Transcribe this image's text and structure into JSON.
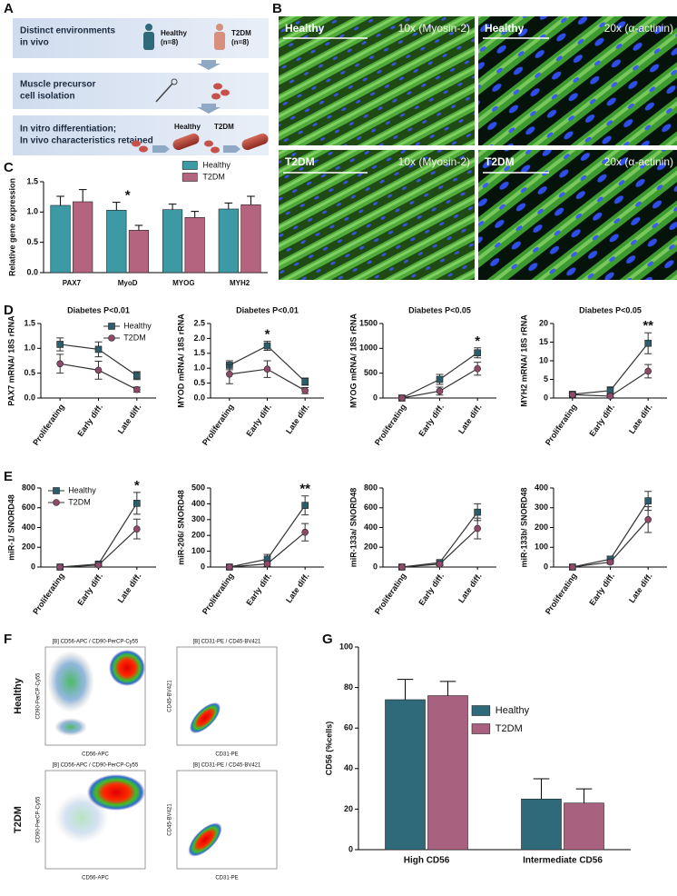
{
  "panel_letters": [
    "A",
    "B",
    "C",
    "D",
    "E",
    "F",
    "G"
  ],
  "diagram": {
    "steps": [
      [
        "Distinct environments",
        "in vivo"
      ],
      [
        "Muscle precursor",
        "cell isolation"
      ],
      [
        "In vitro differentiation;",
        "In vivo characteristics retained"
      ]
    ],
    "group_a": [
      "Healthy",
      "(n=8)"
    ],
    "group_b": [
      "T2DM",
      "(n=8)"
    ],
    "fiber_a": "Healthy",
    "fiber_b": "T2DM"
  },
  "micrographs": [
    {
      "group": "Healthy",
      "stain": "10x (Myosin-2)"
    },
    {
      "group": "Healthy",
      "stain": "20x (α-actinin)"
    },
    {
      "group": "T2DM",
      "stain": "10x (Myosin-2)"
    },
    {
      "group": "T2DM",
      "stain": "20x (α-actinin)"
    }
  ],
  "flow": {
    "rows": [
      "Healthy",
      "T2DM"
    ],
    "plots": [
      {
        "title": "[B] CD56-APC / CD90-PerCP-Cy55",
        "x_label": "CD56-APC",
        "y_label": "CD90-PerCP-Cy55"
      },
      {
        "title": "[B] CD31-PE / CD45-BV421",
        "x_label": "CD31-PE",
        "y_label": "CD45-BV421"
      }
    ]
  },
  "chart_data": [
    {
      "type": "bar",
      "y_label": "Relative gene expression",
      "categories": [
        "PAX7",
        "MyoD",
        "MYOG",
        "MYH2"
      ],
      "series": [
        {
          "name": "Healthy",
          "color": "#3c9aa5",
          "values": [
            1.11,
            1.03,
            1.04,
            1.05
          ],
          "errors": [
            0.15,
            0.13,
            0.09,
            0.1
          ]
        },
        {
          "name": "T2DM",
          "color": "#b4647e",
          "values": [
            1.17,
            0.7,
            0.91,
            1.12
          ],
          "errors": [
            0.2,
            0.08,
            0.1,
            0.14
          ]
        }
      ],
      "ylim": [
        0,
        1.5
      ],
      "yticks": [
        {
          "value": 0,
          "label": "0.0"
        },
        {
          "value": 0.5,
          "label": "0.5"
        },
        {
          "value": 1,
          "label": "1.0"
        },
        {
          "value": 1.5,
          "label": "1.5"
        }
      ],
      "legend": "top",
      "annotations": [
        {
          "text": "*",
          "index": 1
        }
      ]
    },
    {
      "type": "line",
      "title": "Diabetes P<0.01",
      "y_label": "PAX7 mRNA/ 18S rRNA",
      "categories": [
        "Proliferating",
        "Early diff.",
        "Late diff."
      ],
      "series": [
        {
          "name": "Healthy",
          "color": "#2b5d6a",
          "marker": "square",
          "values": [
            1.08,
            0.98,
            0.45
          ],
          "errors": [
            0.13,
            0.15,
            0.08
          ]
        },
        {
          "name": "T2DM",
          "color": "#8e4a68",
          "marker": "circle",
          "values": [
            0.69,
            0.56,
            0.17
          ],
          "errors": [
            0.19,
            0.18,
            0.05
          ]
        }
      ],
      "ylim": [
        0,
        1.5
      ],
      "yticks": [
        {
          "value": 0,
          "label": "0.0"
        },
        {
          "value": 0.5,
          "label": "0.5"
        },
        {
          "value": 1,
          "label": "1.0"
        },
        {
          "value": 1.5,
          "label": "1.5"
        }
      ],
      "legend": "upper-right"
    },
    {
      "type": "line",
      "title": "Diabetes P<0.01",
      "y_label": "MYOD mRNA/ 18S rRNA",
      "categories": [
        "Proliferating",
        "Early diff.",
        "Late diff."
      ],
      "series": [
        {
          "color": "#2b5d6a",
          "marker": "square",
          "values": [
            1.1,
            1.75,
            0.55
          ],
          "errors": [
            0.15,
            0.15,
            0.12
          ]
        },
        {
          "color": "#8e4a68",
          "marker": "circle",
          "values": [
            0.8,
            0.97,
            0.25
          ],
          "errors": [
            0.32,
            0.28,
            0.1
          ]
        }
      ],
      "ylim": [
        0,
        2.5
      ],
      "yticks": [
        {
          "value": 0,
          "label": "0.0"
        },
        {
          "value": 0.5,
          "label": "0.5"
        },
        {
          "value": 1,
          "label": "1.0"
        },
        {
          "value": 1.5,
          "label": "1.5"
        },
        {
          "value": 2,
          "label": "2.0"
        },
        {
          "value": 2.5,
          "label": "2.5"
        }
      ],
      "annotations": [
        {
          "text": "*",
          "index": 1
        }
      ]
    },
    {
      "type": "line",
      "title": "Diabetes P<0.05",
      "y_label": "MYOG mRNA/ 18S rRNA",
      "categories": [
        "Proliferating",
        "Early diff.",
        "Late diff."
      ],
      "series": [
        {
          "color": "#2b5d6a",
          "marker": "square",
          "values": [
            0,
            375,
            910
          ],
          "errors": [
            0,
            100,
            100
          ]
        },
        {
          "color": "#8e4a68",
          "marker": "circle",
          "values": [
            0,
            140,
            590
          ],
          "errors": [
            0,
            80,
            130
          ]
        }
      ],
      "ylim": [
        0,
        1500
      ],
      "yticks": [
        0,
        500,
        1000,
        1500
      ],
      "annotations": [
        {
          "text": "*",
          "index": 2
        }
      ]
    },
    {
      "type": "line",
      "title": "Diabetes P<0.05",
      "y_label": "MYH2 mRNA/ 18S rRNA",
      "categories": [
        "Proliferating",
        "Early diff.",
        "Late diff."
      ],
      "series": [
        {
          "color": "#2b5d6a",
          "marker": "square",
          "values": [
            1,
            2,
            14.7
          ],
          "errors": [
            0.4,
            1,
            2.8
          ]
        },
        {
          "color": "#8e4a68",
          "marker": "circle",
          "values": [
            0.9,
            0.5,
            7.2
          ],
          "errors": [
            0.3,
            0.3,
            1.8
          ]
        }
      ],
      "ylim": [
        0,
        20
      ],
      "yticks": [
        0,
        5,
        10,
        15,
        20
      ],
      "annotations": [
        {
          "text": "**",
          "index": 2
        }
      ]
    },
    {
      "type": "line",
      "y_label": "miR-1/ SNORD48",
      "categories": [
        "Proliferating",
        "Early diff.",
        "Late diff."
      ],
      "series": [
        {
          "name": "Healthy",
          "color": "#2b5d6a",
          "marker": "square",
          "values": [
            0,
            30,
            645
          ],
          "errors": [
            0,
            20,
            110
          ]
        },
        {
          "name": "T2DM",
          "color": "#8e4a68",
          "marker": "circle",
          "values": [
            0,
            20,
            385
          ],
          "errors": [
            0,
            15,
            100
          ]
        }
      ],
      "ylim": [
        0,
        800
      ],
      "yticks": [
        0,
        200,
        400,
        600,
        800
      ],
      "legend": "upper-left",
      "annotations": [
        {
          "text": "*",
          "index": 2
        }
      ]
    },
    {
      "type": "line",
      "y_label": "miR-206/ SNORD48",
      "categories": [
        "Proliferating",
        "Early diff.",
        "Late diff."
      ],
      "series": [
        {
          "color": "#2b5d6a",
          "marker": "square",
          "values": [
            0,
            50,
            390
          ],
          "errors": [
            0,
            30,
            60
          ]
        },
        {
          "color": "#8e4a68",
          "marker": "circle",
          "values": [
            0,
            20,
            220
          ],
          "errors": [
            0,
            15,
            55
          ]
        }
      ],
      "ylim": [
        0,
        500
      ],
      "yticks": [
        0,
        100,
        200,
        300,
        400,
        500
      ],
      "annotations": [
        {
          "text": "**",
          "index": 2
        }
      ]
    },
    {
      "type": "line",
      "y_label": "miR-133a/ SNORD48",
      "categories": [
        "Proliferating",
        "Early diff.",
        "Late diff."
      ],
      "series": [
        {
          "color": "#2b5d6a",
          "marker": "square",
          "values": [
            0,
            45,
            555
          ],
          "errors": [
            0,
            20,
            85
          ]
        },
        {
          "color": "#8e4a68",
          "marker": "circle",
          "values": [
            0,
            30,
            390
          ],
          "errors": [
            0,
            15,
            105
          ]
        }
      ],
      "ylim": [
        0,
        800
      ],
      "yticks": [
        0,
        200,
        400,
        600,
        800
      ]
    },
    {
      "type": "line",
      "y_label": "miR-133b/ SNORD48",
      "categories": [
        "Proliferating",
        "Early diff.",
        "Late diff."
      ],
      "series": [
        {
          "color": "#2b5d6a",
          "marker": "square",
          "values": [
            0,
            40,
            335
          ],
          "errors": [
            0,
            15,
            48
          ]
        },
        {
          "color": "#8e4a68",
          "marker": "circle",
          "values": [
            0,
            25,
            240
          ],
          "errors": [
            0,
            10,
            65
          ]
        }
      ],
      "ylim": [
        0,
        400
      ],
      "yticks": [
        0,
        100,
        200,
        300,
        400
      ]
    },
    {
      "type": "bar",
      "y_label": "CD56 (%cells)",
      "categories": [
        "High CD56",
        "Intermediate CD56"
      ],
      "series": [
        {
          "name": "Healthy",
          "color": "#2f6a7a",
          "values": [
            74,
            25
          ],
          "errors": [
            10,
            10
          ]
        },
        {
          "name": "T2DM",
          "color": "#a8627f",
          "values": [
            76,
            23
          ],
          "errors": [
            7,
            7
          ]
        }
      ],
      "ylim": [
        0,
        100
      ],
      "yticks": [
        0,
        20,
        40,
        60,
        80,
        100
      ],
      "legend": "right"
    }
  ]
}
